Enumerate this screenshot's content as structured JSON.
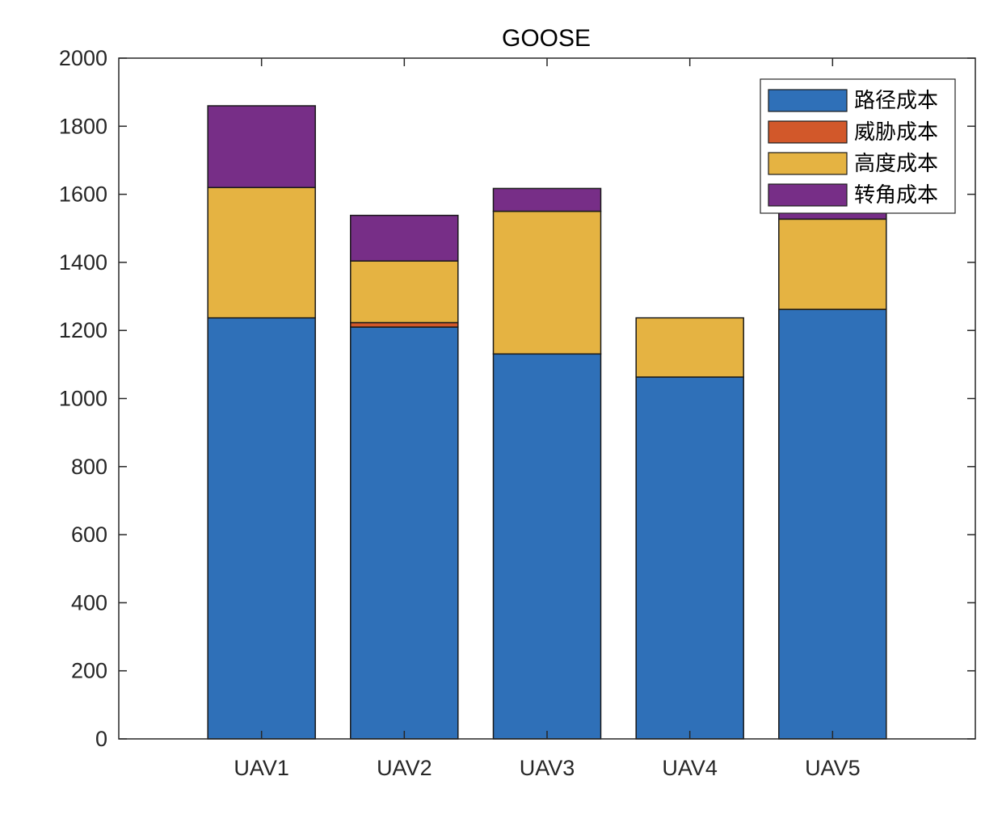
{
  "chart_data": {
    "type": "bar",
    "stacked": true,
    "title": "GOOSE",
    "xlabel": "",
    "ylabel": "",
    "categories": [
      "UAV1",
      "UAV2",
      "UAV3",
      "UAV4",
      "UAV5"
    ],
    "ylim": [
      0,
      2000
    ],
    "yticks": [
      0,
      200,
      400,
      600,
      800,
      1000,
      1200,
      1400,
      1600,
      1800,
      2000
    ],
    "grid": false,
    "legend_position": "top-right",
    "series": [
      {
        "name": "路径成本",
        "color": "#2F70B8",
        "values": [
          1237,
          1210,
          1131,
          1063,
          1262
        ]
      },
      {
        "name": "威胁成本",
        "color": "#D2582A",
        "values": [
          0,
          13,
          0,
          0,
          0
        ]
      },
      {
        "name": "高度成本",
        "color": "#E5B342",
        "values": [
          383,
          181,
          419,
          174,
          265
        ]
      },
      {
        "name": "转角成本",
        "color": "#772E87",
        "values": [
          240,
          134,
          67,
          0,
          100
        ]
      }
    ]
  }
}
